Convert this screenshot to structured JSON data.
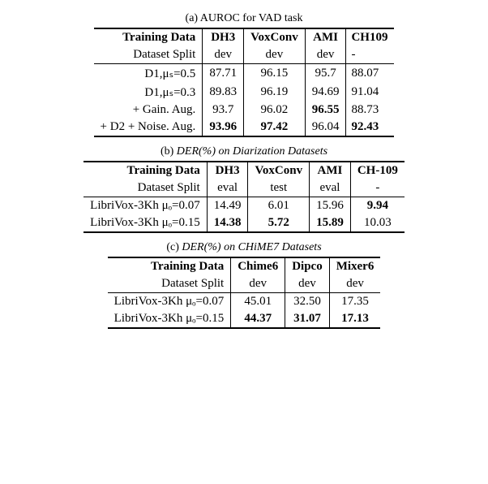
{
  "table_a": {
    "caption": "(a) AUROC for VAD task",
    "header1": [
      "Training Data",
      "DH3",
      "VoxConv",
      "AMI",
      "CH109"
    ],
    "header2": [
      "Dataset Split",
      "dev",
      "dev",
      "dev",
      "-"
    ],
    "rows": [
      {
        "label": "D1,μₛ=0.5",
        "c1": "87.71",
        "c2": "96.15",
        "c3": "95.7",
        "c4": "88.07",
        "b": [
          false,
          false,
          false,
          false
        ]
      },
      {
        "label": "D1,μₛ=0.3",
        "c1": "89.83",
        "c2": "96.19",
        "c3": "94.69",
        "c4": "91.04",
        "b": [
          false,
          false,
          false,
          false
        ]
      },
      {
        "label": "+ Gain. Aug.",
        "c1": "93.7",
        "c2": "96.02",
        "c3": "96.55",
        "c4": "88.73",
        "b": [
          false,
          false,
          true,
          false
        ]
      },
      {
        "label": "+ D2 + Noise. Aug.",
        "c1": "93.96",
        "c2": "97.42",
        "c3": "96.04",
        "c4": "92.43",
        "b": [
          true,
          true,
          false,
          true
        ]
      }
    ]
  },
  "table_b": {
    "caption": "(b) DER(%) on Diarization Datasets",
    "header1": [
      "Training Data",
      "DH3",
      "VoxConv",
      "AMI",
      "CH-109"
    ],
    "header2": [
      "Dataset Split",
      "eval",
      "test",
      "eval",
      "-"
    ],
    "rows": [
      {
        "label": "LibriVox-3Kh μₒ=0.07",
        "c1": "14.49",
        "c2": "6.01",
        "c3": "15.96",
        "c4": "9.94",
        "b": [
          false,
          false,
          false,
          true
        ]
      },
      {
        "label": "LibriVox-3Kh μₒ=0.15",
        "c1": "14.38",
        "c2": "5.72",
        "c3": "15.89",
        "c4": "10.03",
        "b": [
          true,
          true,
          true,
          false
        ]
      }
    ]
  },
  "table_c": {
    "caption": "(c) DER(%) on CHiME7 Datasets",
    "header1": [
      "Training Data",
      "Chime6",
      "Dipco",
      "Mixer6"
    ],
    "header2": [
      "Dataset Split",
      "dev",
      "dev",
      "dev"
    ],
    "rows": [
      {
        "label": "LibriVox-3Kh μₒ=0.07",
        "c1": "45.01",
        "c2": "32.50",
        "c3": "17.35",
        "b": [
          false,
          false,
          false
        ]
      },
      {
        "label": "LibriVox-3Kh μₒ=0.15",
        "c1": "44.37",
        "c2": "31.07",
        "c3": "17.13",
        "b": [
          true,
          true,
          true
        ]
      }
    ]
  }
}
